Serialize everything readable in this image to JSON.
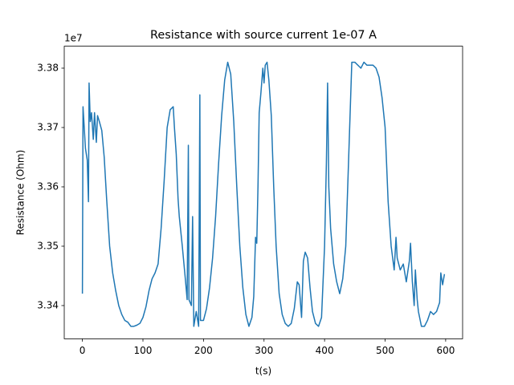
{
  "chart_data": {
    "type": "line",
    "title": "Resistance with source current 1e-07 A",
    "x_label": "t(s)",
    "y_label": "Resistance (Ohm)",
    "y_offset_label": "1e7",
    "xlim": [
      -30,
      628
    ],
    "xticks": [
      0,
      100,
      200,
      300,
      400,
      500,
      600
    ],
    "ylim": [
      3.3344,
      3.3837
    ],
    "yticks": [
      3.34,
      3.35,
      3.36,
      3.37,
      3.38
    ],
    "grid": false,
    "series": [
      {
        "color": "#1f77b4",
        "x": [
          0,
          1,
          3,
          5,
          8,
          10,
          11,
          13,
          15,
          18,
          20,
          23,
          25,
          28,
          32,
          36,
          40,
          45,
          50,
          55,
          60,
          65,
          70,
          75,
          80,
          85,
          90,
          95,
          100,
          105,
          110,
          115,
          120,
          125,
          130,
          135,
          140,
          145,
          150,
          152,
          155,
          158,
          160,
          165,
          170,
          173,
          175,
          176,
          180,
          182,
          184,
          188,
          192,
          194,
          195,
          200,
          205,
          210,
          215,
          220,
          225,
          230,
          235,
          240,
          245,
          250,
          255,
          260,
          265,
          270,
          275,
          280,
          283,
          286,
          288,
          290,
          292,
          295,
          298,
          300,
          302,
          305,
          308,
          312,
          316,
          320,
          325,
          330,
          335,
          340,
          345,
          350,
          355,
          358,
          362,
          365,
          368,
          372,
          376,
          380,
          385,
          390,
          395,
          400,
          403,
          405,
          407,
          410,
          415,
          420,
          425,
          430,
          435,
          440,
          445,
          450,
          460,
          465,
          470,
          480,
          485,
          490,
          495,
          500,
          505,
          510,
          515,
          518,
          520,
          525,
          530,
          535,
          540,
          542,
          545,
          548,
          550,
          553,
          555,
          560,
          565,
          570,
          575,
          580,
          585,
          590,
          592,
          595,
          598
        ],
        "values": [
          3.342,
          3.3735,
          3.37,
          3.3665,
          3.3645,
          3.3575,
          3.3775,
          3.371,
          3.3725,
          3.368,
          3.3725,
          3.3675,
          3.372,
          3.371,
          3.3695,
          3.365,
          3.358,
          3.35,
          3.3455,
          3.3425,
          3.34,
          3.3385,
          3.3375,
          3.3372,
          3.3365,
          3.3365,
          3.3367,
          3.337,
          3.338,
          3.3398,
          3.3425,
          3.3445,
          3.3455,
          3.347,
          3.353,
          3.361,
          3.37,
          3.373,
          3.3735,
          3.37,
          3.3655,
          3.358,
          3.355,
          3.35,
          3.3445,
          3.341,
          3.367,
          3.341,
          3.34,
          3.355,
          3.3365,
          3.339,
          3.3365,
          3.3755,
          3.3375,
          3.3375,
          3.3395,
          3.343,
          3.348,
          3.355,
          3.364,
          3.372,
          3.378,
          3.381,
          3.379,
          3.371,
          3.36,
          3.35,
          3.343,
          3.3385,
          3.3365,
          3.338,
          3.3415,
          3.3515,
          3.3505,
          3.36,
          3.3725,
          3.376,
          3.38,
          3.3775,
          3.3805,
          3.381,
          3.378,
          3.372,
          3.36,
          3.35,
          3.342,
          3.3385,
          3.337,
          3.3365,
          3.337,
          3.3395,
          3.344,
          3.3435,
          3.338,
          3.3475,
          3.349,
          3.348,
          3.343,
          3.339,
          3.337,
          3.3365,
          3.338,
          3.35,
          3.364,
          3.3775,
          3.36,
          3.353,
          3.347,
          3.344,
          3.342,
          3.3445,
          3.35,
          3.3655,
          3.381,
          3.381,
          3.38,
          3.381,
          3.3805,
          3.3805,
          3.38,
          3.3785,
          3.375,
          3.37,
          3.3575,
          3.35,
          3.346,
          3.3515,
          3.348,
          3.346,
          3.347,
          3.344,
          3.3475,
          3.3505,
          3.344,
          3.34,
          3.346,
          3.341,
          3.339,
          3.3365,
          3.3365,
          3.3375,
          3.339,
          3.3385,
          3.339,
          3.3405,
          3.3455,
          3.3435,
          3.3453
        ]
      }
    ]
  }
}
